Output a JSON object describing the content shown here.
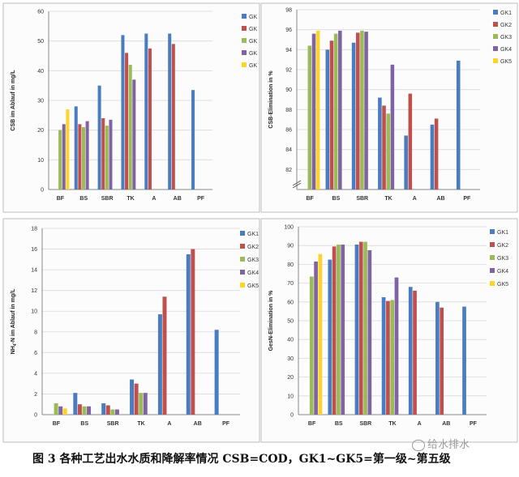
{
  "caption": "图 3 各种工艺出水水质和降解率情况 CSB=COD，GK1~GK5=第一级~第五级",
  "watermark": "给水排水",
  "chart_data": [
    {
      "type": "bar",
      "ylabel": "CSB im Ablauf in mg/L",
      "ylim": [
        0,
        60
      ],
      "yticks": [
        0,
        10,
        20,
        30,
        40,
        50,
        60
      ],
      "axis_break": false,
      "categories": [
        "BF",
        "BS",
        "SBR",
        "TK",
        "A",
        "AB",
        "PF"
      ],
      "legend": "right",
      "series": [
        {
          "name": "GK",
          "values": [
            null,
            28,
            35,
            52,
            52.5,
            52.5,
            33.5
          ]
        },
        {
          "name": "GK",
          "values": [
            null,
            22,
            24,
            46,
            47.5,
            49,
            null
          ]
        },
        {
          "name": "GK",
          "values": [
            20,
            21,
            21.5,
            42,
            null,
            null,
            null
          ]
        },
        {
          "name": "GK",
          "values": [
            22,
            23,
            23.5,
            37,
            null,
            null,
            null
          ]
        },
        {
          "name": "GK",
          "values": [
            27,
            null,
            null,
            null,
            null,
            null,
            null
          ]
        }
      ]
    },
    {
      "type": "bar",
      "ylabel": "CSB-Elimination in %",
      "ylim": [
        80,
        98
      ],
      "yticks": [
        82,
        84,
        86,
        88,
        90,
        92,
        94,
        96,
        98
      ],
      "axis_break": true,
      "categories": [
        "BF",
        "BS",
        "SBR",
        "TK",
        "A",
        "AB",
        "PF"
      ],
      "legend": "right",
      "series": [
        {
          "name": "GK1",
          "values": [
            null,
            94,
            94.7,
            89.2,
            85.4,
            86.5,
            92.9
          ]
        },
        {
          "name": "GK2",
          "values": [
            null,
            94.9,
            95.7,
            88.4,
            89.6,
            87.1,
            null
          ]
        },
        {
          "name": "GK3",
          "values": [
            94.4,
            95.6,
            95.9,
            87.6,
            null,
            null,
            null
          ]
        },
        {
          "name": "GK4",
          "values": [
            95.6,
            95.9,
            95.8,
            92.5,
            null,
            null,
            null
          ]
        },
        {
          "name": "GK5",
          "values": [
            95.9,
            null,
            null,
            null,
            null,
            null,
            null
          ]
        }
      ]
    },
    {
      "type": "bar",
      "ylabel": "NH4-N im Ablauf in mg/L",
      "ylim": [
        0,
        18
      ],
      "yticks": [
        0,
        2,
        4,
        6,
        8,
        10,
        12,
        14,
        16,
        18
      ],
      "axis_break": false,
      "categories": [
        "BF",
        "BS",
        "SBR",
        "TK",
        "A",
        "AB",
        "PF"
      ],
      "legend": "right",
      "series": [
        {
          "name": "GK1",
          "values": [
            null,
            2.1,
            1.1,
            3.4,
            9.7,
            15.5,
            8.2
          ]
        },
        {
          "name": "GK2",
          "values": [
            null,
            1,
            0.9,
            3,
            11.4,
            16,
            null
          ]
        },
        {
          "name": "GK3",
          "values": [
            1.1,
            0.8,
            0.5,
            2.1,
            null,
            null,
            null
          ]
        },
        {
          "name": "GK4",
          "values": [
            0.8,
            0.8,
            0.5,
            2.1,
            null,
            null,
            null
          ]
        },
        {
          "name": "GK5",
          "values": [
            0.6,
            null,
            null,
            null,
            null,
            null,
            null
          ]
        }
      ]
    },
    {
      "type": "bar",
      "ylabel": "GesN-Elimination in %",
      "ylim": [
        0,
        100
      ],
      "yticks": [
        0,
        10,
        20,
        30,
        40,
        50,
        60,
        70,
        80,
        90,
        100
      ],
      "axis_break": false,
      "categories": [
        "BF",
        "BS",
        "SBR",
        "TK",
        "A",
        "AB",
        "PF"
      ],
      "legend": "right",
      "series": [
        {
          "name": "GK1",
          "values": [
            null,
            82.5,
            90.5,
            62.5,
            68,
            60,
            57.5
          ]
        },
        {
          "name": "GK2",
          "values": [
            null,
            89.5,
            92,
            60.5,
            66,
            57,
            null
          ]
        },
        {
          "name": "GK3",
          "values": [
            73.5,
            90.5,
            92,
            61,
            null,
            null,
            null
          ]
        },
        {
          "name": "GK4",
          "values": [
            81.5,
            90.5,
            87.5,
            73,
            null,
            null,
            null
          ]
        },
        {
          "name": "GK5",
          "values": [
            85.5,
            null,
            null,
            null,
            null,
            null,
            null
          ]
        }
      ]
    }
  ],
  "colors": [
    "#4a7dbf",
    "#c0504d",
    "#9bbb59",
    "#8064a2",
    "#ffd42a"
  ]
}
